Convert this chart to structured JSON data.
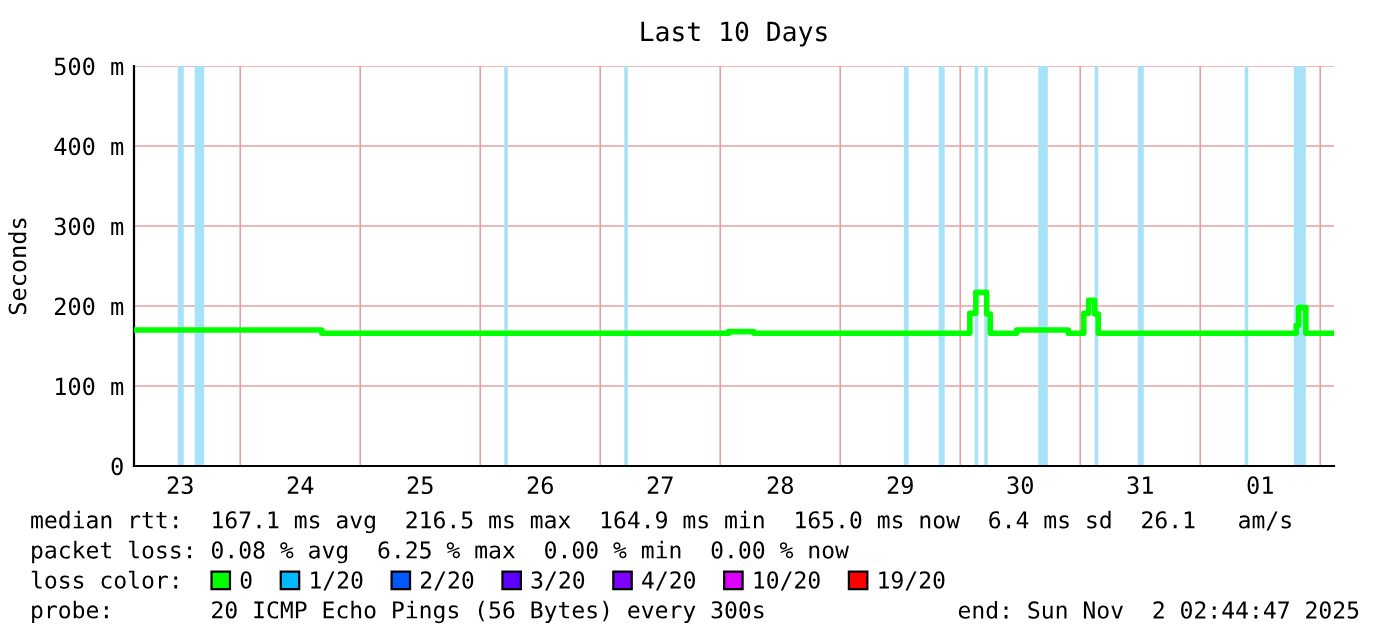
{
  "chart_data": {
    "type": "step",
    "title": "Last 10 Days",
    "ylabel": "Seconds",
    "legend_title": "loss color:",
    "x": [
      "2025-10-23T02:45",
      "2025-10-24T16:19",
      "2025-10-24T16:48",
      "2025-10-28T01:41",
      "2025-10-28T06:43",
      "2025-10-30T01:55",
      "2025-10-30T03:07",
      "2025-10-30T05:17",
      "2025-10-30T06:00",
      "2025-10-30T11:17",
      "2025-10-30T21:36",
      "2025-10-31T00:43",
      "2025-10-31T01:41",
      "2025-10-31T02:53",
      "2025-10-31T03:36",
      "2025-11-01T19:12",
      "2025-11-01T19:41",
      "2025-11-01T20:53",
      "2025-11-01T21:07",
      "2025-11-02T02:45"
    ],
    "series": [
      {
        "name": "0",
        "color": "#00ff00",
        "values": [
          170,
          166,
          166,
          168,
          166,
          191,
          217,
          190,
          166,
          170,
          166,
          191,
          207,
          190,
          166,
          176,
          198,
          198,
          166,
          166
        ]
      },
      {
        "name": "1/20",
        "color": "#00b8ff",
        "values": [
          null,
          null,
          null,
          null,
          null,
          null,
          null,
          null,
          null,
          null,
          null,
          null,
          null,
          null,
          null,
          null,
          null,
          null,
          null,
          null
        ]
      },
      {
        "name": "2/20",
        "color": "#0059ff",
        "values": [
          null,
          null,
          null,
          null,
          null,
          null,
          null,
          null,
          null,
          null,
          null,
          null,
          null,
          null,
          null,
          null,
          null,
          null,
          null,
          null
        ]
      },
      {
        "name": "3/20",
        "color": "#5e00ff",
        "values": [
          null,
          null,
          null,
          null,
          null,
          null,
          null,
          null,
          null,
          null,
          null,
          null,
          null,
          null,
          null,
          null,
          null,
          null,
          null,
          null
        ]
      },
      {
        "name": "4/20",
        "color": "#7e00ff",
        "values": [
          null,
          null,
          null,
          null,
          null,
          null,
          null,
          null,
          null,
          null,
          null,
          null,
          null,
          null,
          null,
          null,
          null,
          null,
          null,
          null
        ]
      },
      {
        "name": "10/20",
        "color": "#dd00ff",
        "values": [
          null,
          null,
          null,
          null,
          null,
          null,
          null,
          null,
          null,
          null,
          null,
          null,
          null,
          null,
          null,
          null,
          null,
          null,
          null,
          null
        ]
      },
      {
        "name": "19/20",
        "color": "#ff0000",
        "values": [
          null,
          null,
          null,
          null,
          null,
          null,
          null,
          null,
          null,
          null,
          null,
          null,
          null,
          null,
          null,
          null,
          null,
          null,
          null,
          null
        ]
      }
    ],
    "xlim": [
      "2025-10-23T02:45",
      "2025-11-02T02:45"
    ],
    "xticks": [
      {
        "value": "2025-10-23T12:00",
        "label": "23"
      },
      {
        "value": "2025-10-24T12:00",
        "label": "24"
      },
      {
        "value": "2025-10-25T12:00",
        "label": "25"
      },
      {
        "value": "2025-10-26T12:00",
        "label": "26"
      },
      {
        "value": "2025-10-27T12:00",
        "label": "27"
      },
      {
        "value": "2025-10-28T12:00",
        "label": "28"
      },
      {
        "value": "2025-10-29T12:00",
        "label": "29"
      },
      {
        "value": "2025-10-30T12:00",
        "label": "30"
      },
      {
        "value": "2025-10-31T12:00",
        "label": "31"
      },
      {
        "value": "2025-11-01T12:00",
        "label": "01"
      },
      {
        "value": "2025-10-24T00:00",
        "label": null
      },
      {
        "value": "2025-10-25T00:00",
        "label": null
      },
      {
        "value": "2025-10-26T00:00",
        "label": null
      },
      {
        "value": "2025-10-27T00:00",
        "label": null
      },
      {
        "value": "2025-10-28T00:00",
        "label": null
      },
      {
        "value": "2025-10-29T00:00",
        "label": null
      },
      {
        "value": "2025-10-30T00:00",
        "label": null
      },
      {
        "value": "2025-10-31T00:00",
        "label": null
      },
      {
        "value": "2025-11-01T00:00",
        "label": null
      },
      {
        "value": "2025-11-02T00:00",
        "label": null
      }
    ],
    "ylim": [
      0,
      500
    ],
    "yticks": [
      0,
      {
        "value": 100,
        "label": "100 m"
      },
      {
        "value": 200,
        "label": "200 m"
      },
      {
        "value": 300,
        "label": "300 m"
      },
      {
        "value": 400,
        "label": "400 m"
      },
      {
        "value": 500,
        "label": "500 m"
      }
    ],
    "grid": true,
    "legend": "bottom",
    "bands": [
      {
        "axis": "x",
        "from": "2025-10-23T11:31",
        "to": "2025-10-23T12:43",
        "color": "#a8e2f8"
      },
      {
        "axis": "x",
        "from": "2025-10-23T14:53",
        "to": "2025-10-23T16:48",
        "color": "#a8e2f8"
      },
      {
        "axis": "x",
        "from": "2025-10-26T04:48",
        "to": "2025-10-26T05:31",
        "color": "#a8e2f8"
      },
      {
        "axis": "x",
        "from": "2025-10-27T04:48",
        "to": "2025-10-27T05:31",
        "color": "#a8e2f8"
      },
      {
        "axis": "x",
        "from": "2025-10-29T12:43",
        "to": "2025-10-29T13:41",
        "color": "#a8e2f8"
      },
      {
        "axis": "x",
        "from": "2025-10-29T19:41",
        "to": "2025-10-29T20:53",
        "color": "#a8e2f8"
      },
      {
        "axis": "x",
        "from": "2025-10-30T02:53",
        "to": "2025-10-30T03:36",
        "color": "#a8e2f8"
      },
      {
        "axis": "x",
        "from": "2025-10-30T04:48",
        "to": "2025-10-30T05:31",
        "color": "#a8e2f8"
      },
      {
        "axis": "x",
        "from": "2025-10-30T15:36",
        "to": "2025-10-30T17:31",
        "color": "#a8e2f8"
      },
      {
        "axis": "x",
        "from": "2025-10-31T02:53",
        "to": "2025-10-31T03:36",
        "color": "#a8e2f8"
      },
      {
        "axis": "x",
        "from": "2025-10-31T11:31",
        "to": "2025-10-31T12:43",
        "color": "#a8e2f8"
      },
      {
        "axis": "x",
        "from": "2025-11-01T08:53",
        "to": "2025-11-01T09:36",
        "color": "#a8e2f8"
      },
      {
        "axis": "x",
        "from": "2025-11-01T18:43",
        "to": "2025-11-01T21:07",
        "color": "#a8e2f8"
      }
    ],
    "annotations": [
      "median rtt:  167.1 ms avg  216.5 ms max  164.9 ms min  165.0 ms now  6.4 ms sd  26.1   am/s",
      "packet loss: 0.08 % avg  6.25 % max  0.00 % min  0.00 % now",
      "probe:       20 ICMP Echo Pings (56 Bytes) every 300s",
      "end: Sun Nov  2 02:44:47 2025"
    ]
  }
}
